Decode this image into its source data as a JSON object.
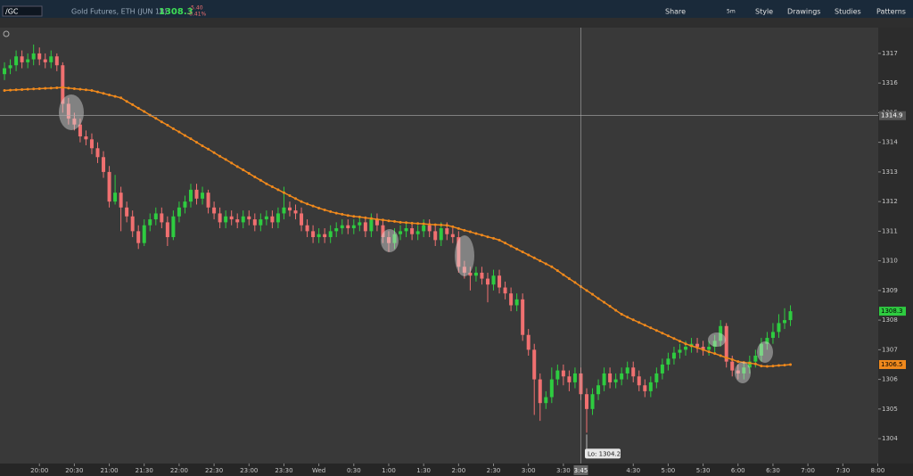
{
  "header": {
    "symbol": "/GC",
    "description": "Gold Futures, ETH (JUN 18)",
    "last": "1308.3",
    "change": "-5.40",
    "change_pct": "-0.41%",
    "timeframe": "5m",
    "buttons": [
      "Share",
      "Style",
      "Drawings",
      "Studies",
      "Patterns"
    ]
  },
  "chart_data": {
    "type": "candlestick",
    "up_color": "#2ecc40",
    "down_color": "#f07070",
    "ylim": [
      1303.16,
      1317.87
    ],
    "yticks": [
      1304,
      1305,
      1306,
      1307,
      1308,
      1309,
      1310,
      1311,
      1312,
      1313,
      1314,
      1315,
      1316,
      1317
    ],
    "xlim": [
      -0.77,
      150.08
    ],
    "xticks": [
      {
        "value": 6,
        "label": "20:00"
      },
      {
        "value": 12,
        "label": "20:30"
      },
      {
        "value": 18,
        "label": "21:00"
      },
      {
        "value": 24,
        "label": "21:30"
      },
      {
        "value": 30,
        "label": "22:00"
      },
      {
        "value": 36,
        "label": "22:30"
      },
      {
        "value": 42,
        "label": "23:00"
      },
      {
        "value": 48,
        "label": "23:30"
      },
      {
        "value": 54,
        "label": "Wed"
      },
      {
        "value": 60,
        "label": "0:30"
      },
      {
        "value": 66,
        "label": "1:00"
      },
      {
        "value": 72,
        "label": "1:30"
      },
      {
        "value": 78,
        "label": "2:00"
      },
      {
        "value": 84,
        "label": "2:30"
      },
      {
        "value": 90,
        "label": "3:00"
      },
      {
        "value": 96,
        "label": "3:30"
      },
      {
        "value": 108,
        "label": "4:30"
      },
      {
        "value": 114,
        "label": "5:00"
      },
      {
        "value": 120,
        "label": "5:30"
      },
      {
        "value": 126,
        "label": "6:00"
      },
      {
        "value": 132,
        "label": "6:30"
      },
      {
        "value": 138,
        "label": "7:00"
      },
      {
        "value": 144,
        "label": "7:30"
      },
      {
        "value": 150,
        "label": "8:00"
      }
    ],
    "crosshair": {
      "y": 1314.9,
      "x": {
        "value": 99,
        "label": "3:45"
      }
    },
    "low_label": "Lo: 1304.2",
    "candles": [
      [
        1316.3,
        1316.7,
        1316.1,
        1316.5
      ],
      [
        1316.5,
        1316.8,
        1316.3,
        1316.6
      ],
      [
        1316.6,
        1317.1,
        1316.4,
        1316.9
      ],
      [
        1316.9,
        1317.1,
        1316.5,
        1316.7
      ],
      [
        1316.7,
        1317.0,
        1316.5,
        1316.8
      ],
      [
        1316.8,
        1317.3,
        1316.6,
        1317.0
      ],
      [
        1317.0,
        1317.2,
        1316.6,
        1316.8
      ],
      [
        1316.8,
        1317.0,
        1316.5,
        1316.7
      ],
      [
        1316.7,
        1317.1,
        1316.5,
        1316.9
      ],
      [
        1316.9,
        1317.0,
        1316.4,
        1316.6
      ],
      [
        1316.6,
        1316.7,
        1315.0,
        1315.3
      ],
      [
        1315.3,
        1315.5,
        1314.6,
        1314.8
      ],
      [
        1314.8,
        1315.0,
        1314.4,
        1314.6
      ],
      [
        1314.6,
        1314.8,
        1314.0,
        1314.2
      ],
      [
        1314.2,
        1314.4,
        1313.9,
        1314.1
      ],
      [
        1314.1,
        1314.3,
        1313.6,
        1313.8
      ],
      [
        1313.8,
        1314.0,
        1313.3,
        1313.5
      ],
      [
        1313.5,
        1313.7,
        1312.8,
        1313.0
      ],
      [
        1313.0,
        1313.2,
        1311.8,
        1312.0
      ],
      [
        1312.0,
        1312.9,
        1311.9,
        1312.3
      ],
      [
        1312.3,
        1312.5,
        1311.0,
        1311.8
      ],
      [
        1311.8,
        1312.0,
        1311.3,
        1311.5
      ],
      [
        1311.5,
        1311.7,
        1310.8,
        1311.0
      ],
      [
        1311.0,
        1311.2,
        1310.4,
        1310.6
      ],
      [
        1310.6,
        1311.4,
        1310.5,
        1311.2
      ],
      [
        1311.2,
        1311.6,
        1311.0,
        1311.4
      ],
      [
        1311.4,
        1311.8,
        1311.2,
        1311.6
      ],
      [
        1311.6,
        1311.8,
        1311.1,
        1311.3
      ],
      [
        1311.3,
        1311.5,
        1310.5,
        1310.8
      ],
      [
        1310.8,
        1311.7,
        1310.7,
        1311.5
      ],
      [
        1311.5,
        1312.0,
        1311.3,
        1311.8
      ],
      [
        1311.8,
        1312.2,
        1311.6,
        1312.0
      ],
      [
        1312.0,
        1312.6,
        1311.8,
        1312.4
      ],
      [
        1312.4,
        1312.6,
        1311.9,
        1312.1
      ],
      [
        1312.1,
        1312.5,
        1311.9,
        1312.3
      ],
      [
        1312.3,
        1312.4,
        1311.6,
        1311.8
      ],
      [
        1311.8,
        1312.0,
        1311.4,
        1311.6
      ],
      [
        1311.6,
        1311.8,
        1311.1,
        1311.3
      ],
      [
        1311.3,
        1311.7,
        1311.1,
        1311.5
      ],
      [
        1311.5,
        1311.7,
        1311.2,
        1311.4
      ],
      [
        1311.4,
        1311.6,
        1311.1,
        1311.3
      ],
      [
        1311.3,
        1311.7,
        1311.1,
        1311.5
      ],
      [
        1311.5,
        1311.7,
        1311.2,
        1311.4
      ],
      [
        1311.4,
        1311.6,
        1311.0,
        1311.2
      ],
      [
        1311.2,
        1311.6,
        1311.0,
        1311.4
      ],
      [
        1311.4,
        1311.7,
        1311.2,
        1311.5
      ],
      [
        1311.5,
        1311.7,
        1311.1,
        1311.3
      ],
      [
        1311.3,
        1311.8,
        1311.1,
        1311.6
      ],
      [
        1311.6,
        1312.5,
        1311.4,
        1311.8
      ],
      [
        1311.8,
        1312.0,
        1311.5,
        1311.7
      ],
      [
        1311.7,
        1311.9,
        1311.4,
        1311.6
      ],
      [
        1311.6,
        1311.8,
        1311.0,
        1311.2
      ],
      [
        1311.2,
        1311.4,
        1310.8,
        1311.0
      ],
      [
        1311.0,
        1311.2,
        1310.6,
        1310.8
      ],
      [
        1310.8,
        1311.1,
        1310.6,
        1310.9
      ],
      [
        1310.9,
        1311.1,
        1310.6,
        1310.8
      ],
      [
        1310.8,
        1311.2,
        1310.6,
        1311.0
      ],
      [
        1311.0,
        1311.3,
        1310.8,
        1311.1
      ],
      [
        1311.1,
        1311.4,
        1310.9,
        1311.2
      ],
      [
        1311.2,
        1311.4,
        1310.9,
        1311.1
      ],
      [
        1311.1,
        1311.4,
        1310.9,
        1311.2
      ],
      [
        1311.2,
        1311.5,
        1311.0,
        1311.3
      ],
      [
        1311.3,
        1311.5,
        1310.8,
        1311.0
      ],
      [
        1311.0,
        1311.6,
        1310.8,
        1311.4
      ],
      [
        1311.4,
        1311.6,
        1311.0,
        1311.2
      ],
      [
        1311.2,
        1311.4,
        1310.6,
        1310.8
      ],
      [
        1310.8,
        1311.0,
        1310.3,
        1310.6
      ],
      [
        1310.6,
        1311.1,
        1310.4,
        1310.9
      ],
      [
        1310.9,
        1311.2,
        1310.7,
        1311.0
      ],
      [
        1311.0,
        1311.3,
        1310.8,
        1311.1
      ],
      [
        1311.1,
        1311.3,
        1310.7,
        1310.9
      ],
      [
        1310.9,
        1311.2,
        1310.7,
        1311.0
      ],
      [
        1311.0,
        1311.4,
        1310.8,
        1311.2
      ],
      [
        1311.2,
        1311.4,
        1310.8,
        1311.0
      ],
      [
        1311.0,
        1311.2,
        1310.5,
        1310.7
      ],
      [
        1310.7,
        1311.3,
        1310.5,
        1311.1
      ],
      [
        1311.1,
        1311.3,
        1310.7,
        1310.9
      ],
      [
        1310.9,
        1311.1,
        1310.6,
        1310.8
      ],
      [
        1310.8,
        1311.0,
        1309.6,
        1309.8
      ],
      [
        1309.8,
        1310.0,
        1309.4,
        1309.6
      ],
      [
        1309.6,
        1309.8,
        1309.0,
        1309.5
      ],
      [
        1309.5,
        1309.8,
        1309.3,
        1309.6
      ],
      [
        1309.6,
        1309.8,
        1309.2,
        1309.4
      ],
      [
        1309.4,
        1309.6,
        1308.6,
        1309.2
      ],
      [
        1309.2,
        1309.7,
        1309.0,
        1309.5
      ],
      [
        1309.5,
        1309.7,
        1308.9,
        1309.1
      ],
      [
        1309.1,
        1309.3,
        1308.7,
        1308.9
      ],
      [
        1308.9,
        1309.1,
        1308.3,
        1308.5
      ],
      [
        1308.5,
        1308.9,
        1308.3,
        1308.7
      ],
      [
        1308.7,
        1308.9,
        1307.3,
        1307.5
      ],
      [
        1307.5,
        1307.7,
        1306.8,
        1307.0
      ],
      [
        1307.0,
        1307.2,
        1304.8,
        1306.0
      ],
      [
        1306.0,
        1306.2,
        1304.6,
        1305.2
      ],
      [
        1305.2,
        1305.6,
        1305.0,
        1305.4
      ],
      [
        1305.4,
        1306.4,
        1305.2,
        1306.0
      ],
      [
        1306.0,
        1306.5,
        1305.8,
        1306.3
      ],
      [
        1306.3,
        1306.5,
        1305.8,
        1306.1
      ],
      [
        1306.1,
        1306.3,
        1305.6,
        1305.9
      ],
      [
        1305.9,
        1306.4,
        1305.7,
        1306.2
      ],
      [
        1306.2,
        1306.4,
        1305.3,
        1305.5
      ],
      [
        1305.5,
        1305.7,
        1304.2,
        1305.0
      ],
      [
        1305.0,
        1305.7,
        1304.8,
        1305.5
      ],
      [
        1305.5,
        1306.0,
        1305.3,
        1305.8
      ],
      [
        1305.8,
        1306.4,
        1305.6,
        1306.2
      ],
      [
        1306.2,
        1306.4,
        1305.7,
        1305.9
      ],
      [
        1305.9,
        1306.2,
        1305.7,
        1306.0
      ],
      [
        1306.0,
        1306.4,
        1305.8,
        1306.2
      ],
      [
        1306.2,
        1306.6,
        1306.0,
        1306.4
      ],
      [
        1306.4,
        1306.6,
        1305.9,
        1306.1
      ],
      [
        1306.1,
        1306.3,
        1305.6,
        1305.8
      ],
      [
        1305.8,
        1306.0,
        1305.4,
        1305.6
      ],
      [
        1305.6,
        1306.1,
        1305.4,
        1305.9
      ],
      [
        1305.9,
        1306.4,
        1305.7,
        1306.2
      ],
      [
        1306.2,
        1306.7,
        1306.0,
        1306.5
      ],
      [
        1306.5,
        1306.9,
        1306.3,
        1306.7
      ],
      [
        1306.7,
        1307.1,
        1306.5,
        1306.9
      ],
      [
        1306.9,
        1307.2,
        1306.7,
        1307.0
      ],
      [
        1307.0,
        1307.3,
        1306.8,
        1307.1
      ],
      [
        1307.1,
        1307.4,
        1306.9,
        1307.2
      ],
      [
        1307.2,
        1307.4,
        1306.9,
        1307.1
      ],
      [
        1307.1,
        1307.3,
        1306.8,
        1307.0
      ],
      [
        1307.0,
        1307.3,
        1306.8,
        1307.1
      ],
      [
        1307.1,
        1307.5,
        1306.9,
        1307.3
      ],
      [
        1307.3,
        1308.0,
        1307.1,
        1307.8
      ],
      [
        1307.8,
        1307.9,
        1306.4,
        1306.6
      ],
      [
        1306.6,
        1306.8,
        1306.1,
        1306.3
      ],
      [
        1306.3,
        1306.5,
        1306.0,
        1306.2
      ],
      [
        1306.2,
        1306.6,
        1306.0,
        1306.4
      ],
      [
        1306.4,
        1306.8,
        1306.2,
        1306.6
      ],
      [
        1306.6,
        1307.0,
        1306.4,
        1306.8
      ],
      [
        1306.8,
        1307.4,
        1306.6,
        1307.2
      ],
      [
        1307.2,
        1307.6,
        1307.0,
        1307.4
      ],
      [
        1307.4,
        1307.9,
        1307.2,
        1307.6
      ],
      [
        1307.6,
        1308.2,
        1307.4,
        1307.9
      ],
      [
        1307.9,
        1308.4,
        1307.7,
        1308.0
      ],
      [
        1308.0,
        1308.5,
        1307.8,
        1308.3
      ]
    ],
    "moving_average": {
      "color": "#f0891c",
      "values": [
        1315.75,
        1315.76,
        1315.77,
        1315.78,
        1315.79,
        1315.8,
        1315.81,
        1315.82,
        1315.83,
        1315.84,
        1315.85,
        1315.83,
        1315.81,
        1315.79,
        1315.77,
        1315.75,
        1315.7,
        1315.65,
        1315.6,
        1315.55,
        1315.5,
        1315.38,
        1315.27,
        1315.15,
        1315.04,
        1314.92,
        1314.81,
        1314.69,
        1314.58,
        1314.46,
        1314.35,
        1314.23,
        1314.12,
        1314.0,
        1313.88,
        1313.77,
        1313.65,
        1313.53,
        1313.42,
        1313.3,
        1313.18,
        1313.07,
        1312.95,
        1312.83,
        1312.72,
        1312.6,
        1312.5,
        1312.4,
        1312.3,
        1312.2,
        1312.1,
        1312.0,
        1311.92,
        1311.85,
        1311.78,
        1311.72,
        1311.66,
        1311.61,
        1311.57,
        1311.53,
        1311.5,
        1311.48,
        1311.45,
        1311.43,
        1311.4,
        1311.38,
        1311.35,
        1311.33,
        1311.3,
        1311.29,
        1311.27,
        1311.26,
        1311.25,
        1311.23,
        1311.22,
        1311.21,
        1311.2,
        1311.15,
        1311.09,
        1311.03,
        1310.98,
        1310.92,
        1310.87,
        1310.81,
        1310.76,
        1310.7,
        1310.6,
        1310.5,
        1310.4,
        1310.3,
        1310.2,
        1310.1,
        1310.0,
        1309.9,
        1309.8,
        1309.67,
        1309.53,
        1309.4,
        1309.27,
        1309.13,
        1309.0,
        1308.87,
        1308.73,
        1308.6,
        1308.47,
        1308.33,
        1308.2,
        1308.1,
        1308.01,
        1307.92,
        1307.83,
        1307.74,
        1307.65,
        1307.56,
        1307.47,
        1307.38,
        1307.29,
        1307.2,
        1307.13,
        1307.07,
        1307.0,
        1306.93,
        1306.87,
        1306.8,
        1306.73,
        1306.67,
        1306.6,
        1306.57,
        1306.55,
        1306.52,
        1306.45,
        1306.44,
        1306.45,
        1306.47,
        1306.48,
        1306.5
      ]
    }
  }
}
